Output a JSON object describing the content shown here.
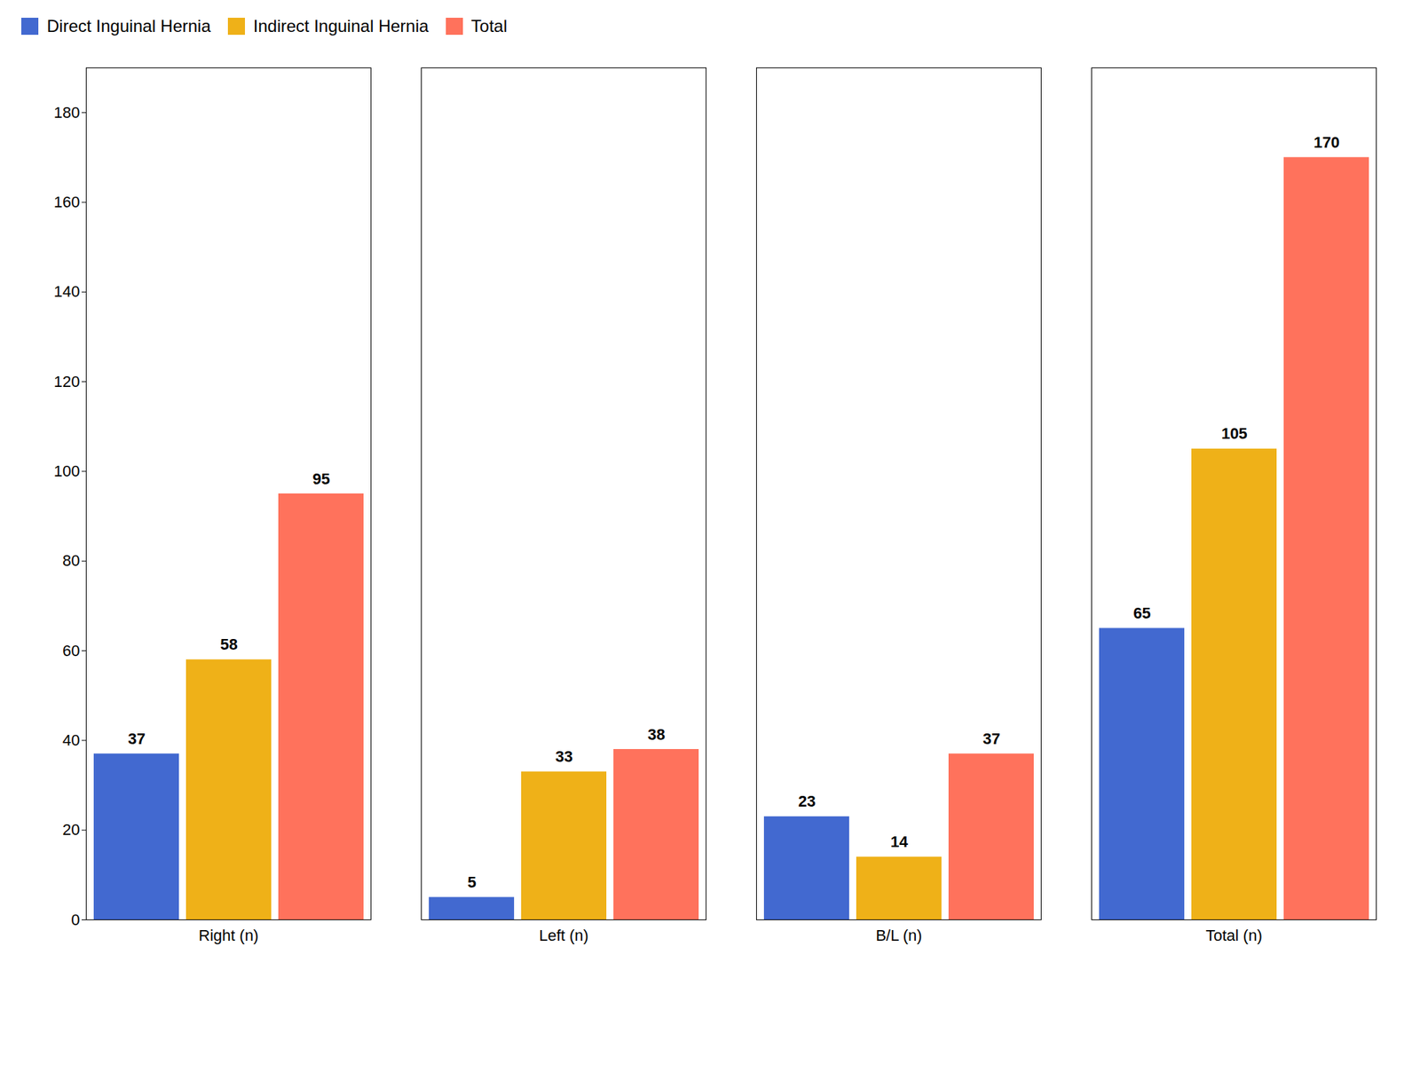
{
  "chart_data": {
    "type": "bar",
    "categories": [
      "Right (n)",
      "Left (n)",
      "B/L (n)",
      "Total (n)"
    ],
    "series": [
      {
        "name": "Direct Inguinal Hernia",
        "values": [
          37,
          5,
          23,
          65
        ]
      },
      {
        "name": "Indirect Inguinal Hernia",
        "values": [
          58,
          33,
          14,
          105
        ]
      },
      {
        "name": "Total",
        "values": [
          95,
          38,
          37,
          170
        ]
      }
    ],
    "ylim": [
      0,
      190
    ],
    "yticks": [
      0,
      20,
      40,
      60,
      80,
      100,
      120,
      140,
      160,
      180
    ],
    "grid": false,
    "legend": "upper left",
    "data_labels": true
  }
}
